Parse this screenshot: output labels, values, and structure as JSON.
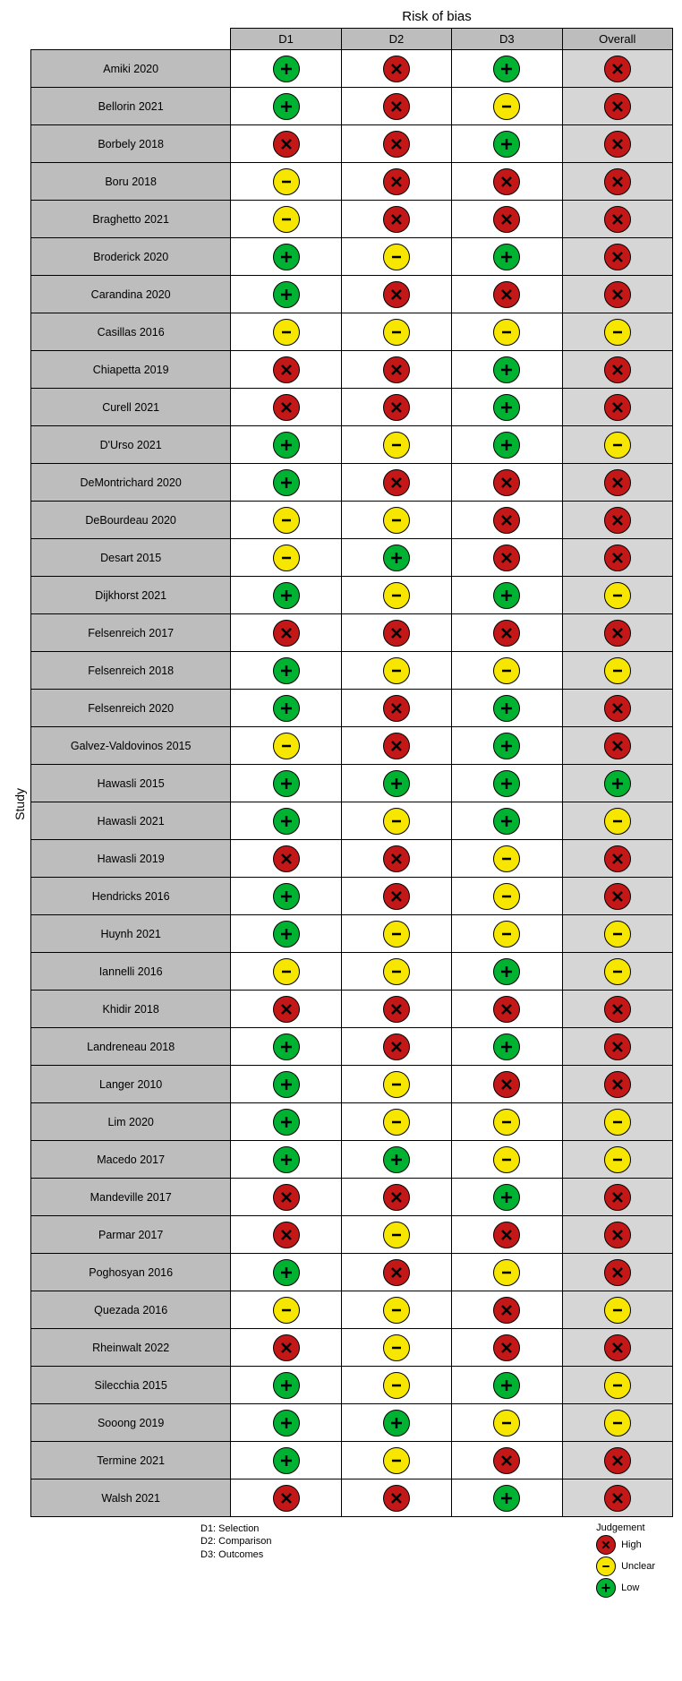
{
  "title": "Risk of bias",
  "ylabel": "Study",
  "columns": [
    "D1",
    "D2",
    "D3",
    "Overall"
  ],
  "domains_legend": [
    "D1: Selection",
    "D2: Comparison",
    "D3: Outcomes"
  ],
  "judgement_legend_title": "Judgement",
  "judgement_legend": [
    {
      "level": "high",
      "label": "High"
    },
    {
      "level": "unclear",
      "label": "Unclear"
    },
    {
      "level": "low",
      "label": "Low"
    }
  ],
  "colors": {
    "low": "#00b232",
    "unclear": "#f7e600",
    "high": "#c41818",
    "header_bg": "#bdbdbd",
    "overall_bg": "#d6d6d6",
    "border": "#000000"
  },
  "glyphs": {
    "low": "+",
    "unclear": "-",
    "high": "x"
  },
  "rows": [
    {
      "study": "Amiki 2020",
      "d": [
        "low",
        "high",
        "low"
      ],
      "overall": "high"
    },
    {
      "study": "Bellorin 2021",
      "d": [
        "low",
        "high",
        "unclear"
      ],
      "overall": "high"
    },
    {
      "study": "Borbely 2018",
      "d": [
        "high",
        "high",
        "low"
      ],
      "overall": "high"
    },
    {
      "study": "Boru 2018",
      "d": [
        "unclear",
        "high",
        "high"
      ],
      "overall": "high"
    },
    {
      "study": "Braghetto 2021",
      "d": [
        "unclear",
        "high",
        "high"
      ],
      "overall": "high"
    },
    {
      "study": "Broderick 2020",
      "d": [
        "low",
        "unclear",
        "low"
      ],
      "overall": "high"
    },
    {
      "study": "Carandina 2020",
      "d": [
        "low",
        "high",
        "high"
      ],
      "overall": "high"
    },
    {
      "study": "Casillas 2016",
      "d": [
        "unclear",
        "unclear",
        "unclear"
      ],
      "overall": "unclear"
    },
    {
      "study": "Chiapetta 2019",
      "d": [
        "high",
        "high",
        "low"
      ],
      "overall": "high"
    },
    {
      "study": "Curell 2021",
      "d": [
        "high",
        "high",
        "low"
      ],
      "overall": "high"
    },
    {
      "study": "D'Urso 2021",
      "d": [
        "low",
        "unclear",
        "low"
      ],
      "overall": "unclear"
    },
    {
      "study": "DeMontrichard 2020",
      "d": [
        "low",
        "high",
        "high"
      ],
      "overall": "high"
    },
    {
      "study": "DeBourdeau 2020",
      "d": [
        "unclear",
        "unclear",
        "high"
      ],
      "overall": "high"
    },
    {
      "study": "Desart 2015",
      "d": [
        "unclear",
        "low",
        "high"
      ],
      "overall": "high"
    },
    {
      "study": "Dijkhorst 2021",
      "d": [
        "low",
        "unclear",
        "low"
      ],
      "overall": "unclear"
    },
    {
      "study": "Felsenreich 2017",
      "d": [
        "high",
        "high",
        "high"
      ],
      "overall": "high"
    },
    {
      "study": "Felsenreich 2018",
      "d": [
        "low",
        "unclear",
        "unclear"
      ],
      "overall": "unclear"
    },
    {
      "study": "Felsenreich 2020",
      "d": [
        "low",
        "high",
        "low"
      ],
      "overall": "high"
    },
    {
      "study": "Galvez-Valdovinos 2015",
      "d": [
        "unclear",
        "high",
        "low"
      ],
      "overall": "high"
    },
    {
      "study": "Hawasli 2015",
      "d": [
        "low",
        "low",
        "low"
      ],
      "overall": "low"
    },
    {
      "study": "Hawasli 2021",
      "d": [
        "low",
        "unclear",
        "low"
      ],
      "overall": "unclear"
    },
    {
      "study": "Hawasli 2019",
      "d": [
        "high",
        "high",
        "unclear"
      ],
      "overall": "high"
    },
    {
      "study": "Hendricks 2016",
      "d": [
        "low",
        "high",
        "unclear"
      ],
      "overall": "high"
    },
    {
      "study": "Huynh 2021",
      "d": [
        "low",
        "unclear",
        "unclear"
      ],
      "overall": "unclear"
    },
    {
      "study": "Iannelli 2016",
      "d": [
        "unclear",
        "unclear",
        "low"
      ],
      "overall": "unclear"
    },
    {
      "study": "Khidir 2018",
      "d": [
        "high",
        "high",
        "high"
      ],
      "overall": "high"
    },
    {
      "study": "Landreneau 2018",
      "d": [
        "low",
        "high",
        "low"
      ],
      "overall": "high"
    },
    {
      "study": "Langer 2010",
      "d": [
        "low",
        "unclear",
        "high"
      ],
      "overall": "high"
    },
    {
      "study": "Lim 2020",
      "d": [
        "low",
        "unclear",
        "unclear"
      ],
      "overall": "unclear"
    },
    {
      "study": "Macedo 2017",
      "d": [
        "low",
        "low",
        "unclear"
      ],
      "overall": "unclear"
    },
    {
      "study": "Mandeville 2017",
      "d": [
        "high",
        "high",
        "low"
      ],
      "overall": "high"
    },
    {
      "study": "Parmar 2017",
      "d": [
        "high",
        "unclear",
        "high"
      ],
      "overall": "high"
    },
    {
      "study": "Poghosyan 2016",
      "d": [
        "low",
        "high",
        "unclear"
      ],
      "overall": "high"
    },
    {
      "study": "Quezada 2016",
      "d": [
        "unclear",
        "unclear",
        "high"
      ],
      "overall": "unclear"
    },
    {
      "study": "Rheinwalt 2022",
      "d": [
        "high",
        "unclear",
        "high"
      ],
      "overall": "high"
    },
    {
      "study": "Silecchia 2015",
      "d": [
        "low",
        "unclear",
        "low"
      ],
      "overall": "unclear"
    },
    {
      "study": "Sooong 2019",
      "d": [
        "low",
        "low",
        "unclear"
      ],
      "overall": "unclear"
    },
    {
      "study": "Termine 2021",
      "d": [
        "low",
        "unclear",
        "high"
      ],
      "overall": "high"
    },
    {
      "study": "Walsh 2021",
      "d": [
        "high",
        "high",
        "low"
      ],
      "overall": "high"
    }
  ]
}
